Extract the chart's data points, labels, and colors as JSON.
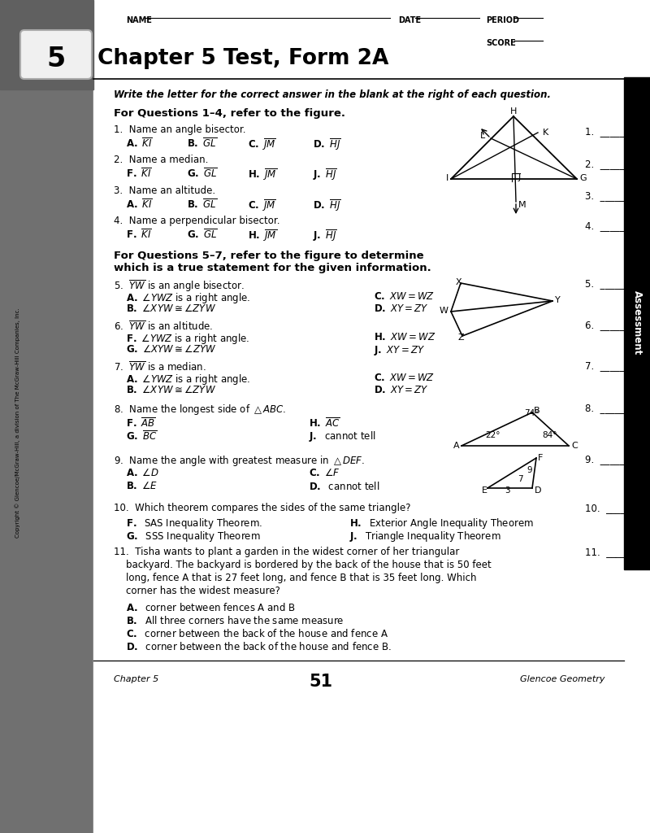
{
  "title": "Chapter 5 Test, Form 2A",
  "chapter_num": "5",
  "page_num": "51",
  "publisher": "Glencoe Geometry",
  "bg_color": "#ffffff"
}
